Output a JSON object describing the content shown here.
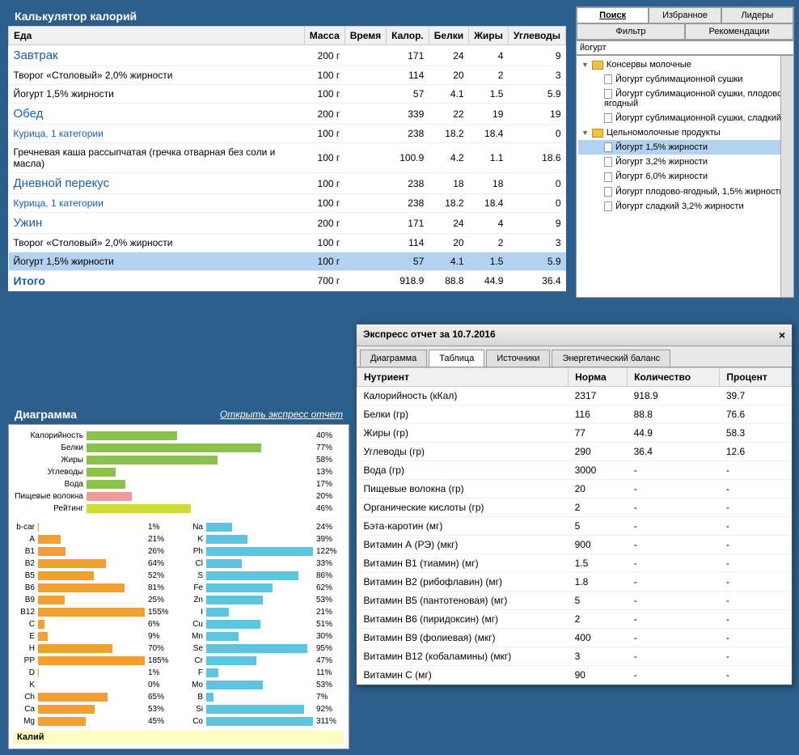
{
  "title": "Калькулятор калорий",
  "columns": [
    "Еда",
    "Масса",
    "Время",
    "Калор.",
    "Белки",
    "Жиры",
    "Углеводы"
  ],
  "rows": [
    {
      "type": "group",
      "name": "Завтрак",
      "mass": "200 г",
      "cal": "171",
      "prot": "24",
      "fat": "4",
      "carb": "9"
    },
    {
      "type": "item",
      "name": "Творог «Столовый» 2,0% жирности",
      "mass": "100 г",
      "cal": "114",
      "prot": "20",
      "fat": "2",
      "carb": "3"
    },
    {
      "type": "item",
      "name": "Йогурт 1,5% жирности",
      "mass": "100 г",
      "cal": "57",
      "prot": "4.1",
      "fat": "1.5",
      "carb": "5.9"
    },
    {
      "type": "group",
      "name": "Обед",
      "mass": "200 г",
      "cal": "339",
      "prot": "22",
      "fat": "19",
      "carb": "19"
    },
    {
      "type": "item",
      "name": "Курица, 1 категории",
      "link": true,
      "mass": "100 г",
      "cal": "238",
      "prot": "18.2",
      "fat": "18.4",
      "carb": "0"
    },
    {
      "type": "item",
      "name": "Гречневая каша рассыпчатая (гречка отварная без соли и масла)",
      "mass": "100 г",
      "cal": "100.9",
      "prot": "4.2",
      "fat": "1.1",
      "carb": "18.6"
    },
    {
      "type": "group",
      "name": "Дневной перекус",
      "mass": "100 г",
      "cal": "238",
      "prot": "18",
      "fat": "18",
      "carb": "0"
    },
    {
      "type": "item",
      "name": "Курица, 1 категории",
      "link": true,
      "mass": "100 г",
      "cal": "238",
      "prot": "18.2",
      "fat": "18.4",
      "carb": "0"
    },
    {
      "type": "group",
      "name": "Ужин",
      "mass": "200 г",
      "cal": "171",
      "prot": "24",
      "fat": "4",
      "carb": "9"
    },
    {
      "type": "item",
      "name": "Творог «Столовый» 2,0% жирности",
      "mass": "100 г",
      "cal": "114",
      "prot": "20",
      "fat": "2",
      "carb": "3"
    },
    {
      "type": "item",
      "name": "Йогурт 1,5% жирности",
      "mass": "100 г",
      "cal": "57",
      "prot": "4.1",
      "fat": "1.5",
      "carb": "5.9",
      "selected": true
    },
    {
      "type": "total",
      "name": "Итого",
      "mass": "700 г",
      "cal": "918.9",
      "prot": "88.8",
      "fat": "44.9",
      "carb": "36.4"
    }
  ],
  "side_tabs_row1": [
    "Поиск",
    "Избранное",
    "Лидеры"
  ],
  "side_tabs_row2": [
    "Фильтр",
    "Рекомендации"
  ],
  "side_tabs_active": 0,
  "search_value": "йогурт",
  "tree": [
    {
      "type": "folder",
      "label": "Консервы молочные",
      "open": true
    },
    {
      "type": "leaf",
      "label": "Йогурт сублимационной сушки"
    },
    {
      "type": "leaf",
      "label": "Йогурт сублимационной сушки, плодово-ягодный"
    },
    {
      "type": "leaf",
      "label": "Йогурт сублимационной сушки, сладкий"
    },
    {
      "type": "folder",
      "label": "Цельномолочные продукты",
      "open": true
    },
    {
      "type": "leaf",
      "label": "Йогурт 1,5% жирности",
      "selected": true
    },
    {
      "type": "leaf",
      "label": "Йогурт 3,2% жирности"
    },
    {
      "type": "leaf",
      "label": "Йогурт 6,0% жирности"
    },
    {
      "type": "leaf",
      "label": "Йогурт плодово-ягодный, 1,5% жирности"
    },
    {
      "type": "leaf",
      "label": "Йогурт сладкий 3,2% жирности"
    }
  ],
  "diagram": {
    "title": "Диаграмма",
    "open_link": "Открыть экспресс отчет",
    "macro_color": "#8bc34a",
    "fiber_color": "#ef9a9a",
    "rating_color": "#cddc39",
    "vitamin_color": "#f0a030",
    "mineral_color": "#5ec5e0",
    "macros": [
      {
        "label": "Калорийность",
        "pct": 40
      },
      {
        "label": "Белки",
        "pct": 77
      },
      {
        "label": "Жиры",
        "pct": 58
      },
      {
        "label": "Углеводы",
        "pct": 13
      },
      {
        "label": "Вода",
        "pct": 17
      },
      {
        "label": "Пищевые волокна",
        "pct": 20,
        "color": "#ef9a9a"
      },
      {
        "label": "Рейтинг",
        "pct": 46,
        "color": "#cddc39"
      }
    ],
    "vitamins": [
      {
        "label": "b-car",
        "pct": 1
      },
      {
        "label": "A",
        "pct": 21
      },
      {
        "label": "B1",
        "pct": 26
      },
      {
        "label": "B2",
        "pct": 64
      },
      {
        "label": "B5",
        "pct": 52
      },
      {
        "label": "B6",
        "pct": 81
      },
      {
        "label": "B9",
        "pct": 25
      },
      {
        "label": "B12",
        "pct": 155
      },
      {
        "label": "C",
        "pct": 6
      },
      {
        "label": "E",
        "pct": 9
      },
      {
        "label": "H",
        "pct": 70
      },
      {
        "label": "PP",
        "pct": 185
      },
      {
        "label": "D",
        "pct": 1
      },
      {
        "label": "K",
        "pct": 0
      },
      {
        "label": "Ch",
        "pct": 65
      },
      {
        "label": "Ca",
        "pct": 53
      },
      {
        "label": "Mg",
        "pct": 45
      }
    ],
    "minerals": [
      {
        "label": "Na",
        "pct": 24
      },
      {
        "label": "K",
        "pct": 39
      },
      {
        "label": "Ph",
        "pct": 122
      },
      {
        "label": "Cl",
        "pct": 33
      },
      {
        "label": "S",
        "pct": 86
      },
      {
        "label": "Fe",
        "pct": 62
      },
      {
        "label": "Zn",
        "pct": 53
      },
      {
        "label": "I",
        "pct": 21
      },
      {
        "label": "Cu",
        "pct": 51
      },
      {
        "label": "Mn",
        "pct": 30
      },
      {
        "label": "Se",
        "pct": 95
      },
      {
        "label": "Cr",
        "pct": 47
      },
      {
        "label": "F",
        "pct": 11
      },
      {
        "label": "Mo",
        "pct": 53
      },
      {
        "label": "B",
        "pct": 7
      },
      {
        "label": "Si",
        "pct": 92
      },
      {
        "label": "Co",
        "pct": 311
      }
    ],
    "footer_mineral": "Калий"
  },
  "report": {
    "title": "Экспресс отчет за 10.7.2016",
    "tabs": [
      "Диаграмма",
      "Таблица",
      "Источники",
      "Энергетический баланс"
    ],
    "active_tab": 1,
    "columns": [
      "Нутриент",
      "Норма",
      "Количество",
      "Процент"
    ],
    "rows": [
      [
        "Калорийность (кКал)",
        "2317",
        "918.9",
        "39.7"
      ],
      [
        "Белки (гр)",
        "116",
        "88.8",
        "76.6"
      ],
      [
        "Жиры (гр)",
        "77",
        "44.9",
        "58.3"
      ],
      [
        "Углеводы (гр)",
        "290",
        "36.4",
        "12.6"
      ],
      [
        "Вода (гр)",
        "3000",
        "-",
        "-"
      ],
      [
        "Пищевые волокна (гр)",
        "20",
        "-",
        "-"
      ],
      [
        "Органические кислоты (гр)",
        "2",
        "-",
        "-"
      ],
      [
        "Бэта-каротин (мг)",
        "5",
        "-",
        "-"
      ],
      [
        "Витамин А (РЭ) (мкг)",
        "900",
        "-",
        "-"
      ],
      [
        "Витамин В1 (тиамин) (мг)",
        "1.5",
        "-",
        "-"
      ],
      [
        "Витамин В2 (рибофлавин) (мг)",
        "1.8",
        "-",
        "-"
      ],
      [
        "Витамин В5 (пантотеновая) (мг)",
        "5",
        "-",
        "-"
      ],
      [
        "Витамин В6 (пиридоксин) (мг)",
        "2",
        "-",
        "-"
      ],
      [
        "Витамин В9 (фолиевая) (мкг)",
        "400",
        "-",
        "-"
      ],
      [
        "Витамин В12 (кобаламины) (мкг)",
        "3",
        "-",
        "-"
      ],
      [
        "Витамин С (мг)",
        "90",
        "-",
        "-"
      ]
    ]
  }
}
